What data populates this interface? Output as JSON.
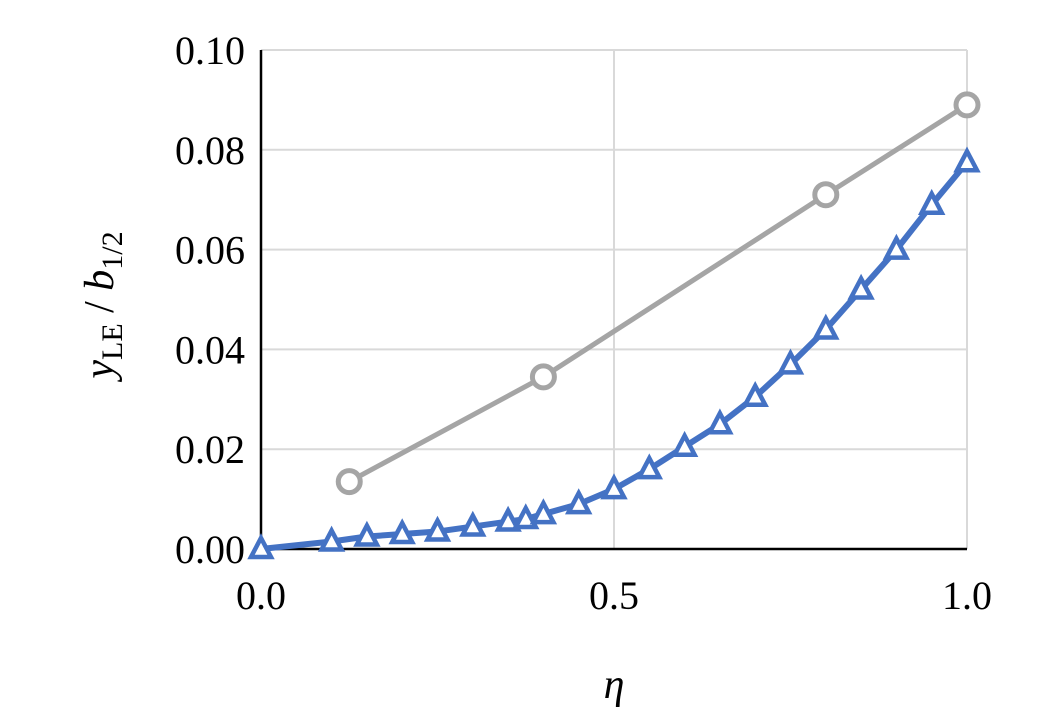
{
  "chart_data": {
    "type": "line",
    "xlabel": "η",
    "ylabel": {
      "main": "y",
      "sub1": "LE",
      "sep": " / ",
      "main2": "b",
      "sub2": "1/2"
    },
    "xlim": [
      0,
      1
    ],
    "ylim": [
      0,
      0.1
    ],
    "x_ticks": [
      0,
      0.5,
      1
    ],
    "x_tick_labels": [
      "0.0",
      "0.5",
      "1.0"
    ],
    "y_ticks": [
      0,
      0.02,
      0.04,
      0.06,
      0.08,
      0.1
    ],
    "y_tick_labels": [
      "0.00",
      "0.02",
      "0.04",
      "0.06",
      "0.08",
      "0.10"
    ],
    "grid": true,
    "series": [
      {
        "color": "#a5a5a5",
        "marker": "circle",
        "x": [
          0.125,
          0.4,
          0.8,
          1.0
        ],
        "y": [
          0.0135,
          0.0345,
          0.071,
          0.089
        ]
      },
      {
        "color": "#4472c4",
        "marker": "triangle",
        "x": [
          0.0,
          0.1,
          0.15,
          0.2,
          0.25,
          0.3,
          0.35,
          0.375,
          0.4,
          0.45,
          0.5,
          0.55,
          0.6,
          0.65,
          0.7,
          0.75,
          0.8,
          0.85,
          0.9,
          0.95,
          1.0
        ],
        "y": [
          0.0,
          0.0015,
          0.0025,
          0.003,
          0.0035,
          0.0045,
          0.0055,
          0.006,
          0.007,
          0.009,
          0.012,
          0.016,
          0.0205,
          0.025,
          0.0305,
          0.037,
          0.044,
          0.052,
          0.06,
          0.069,
          0.0775
        ]
      }
    ]
  }
}
